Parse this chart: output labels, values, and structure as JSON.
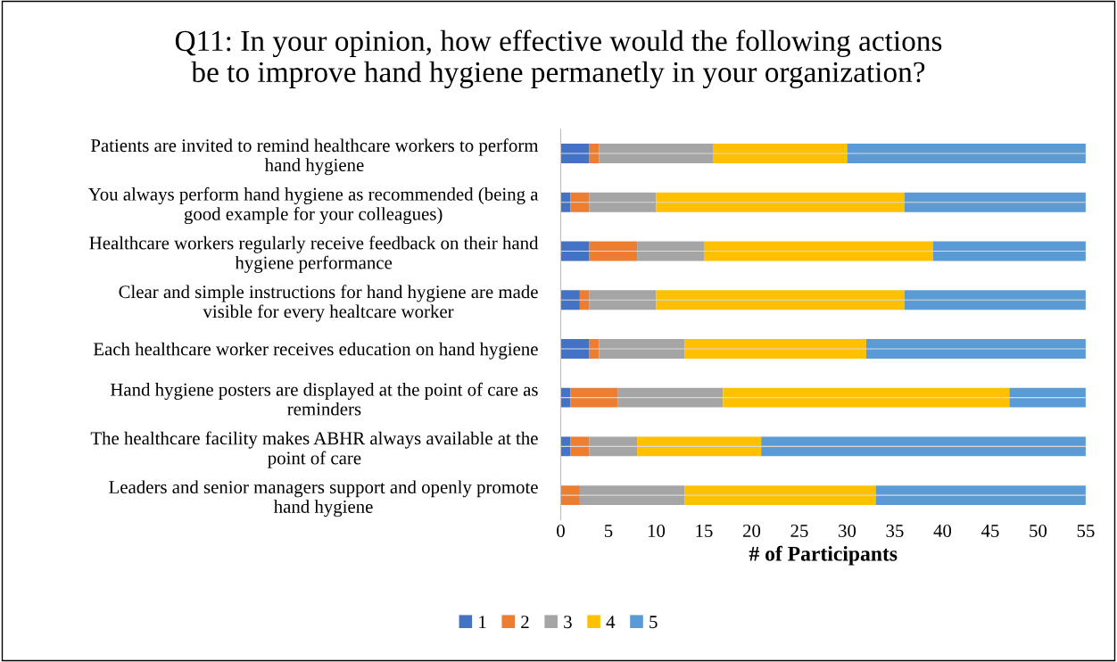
{
  "chart_data": {
    "type": "bar",
    "orientation": "horizontal",
    "stacked": true,
    "title": "Q11: In your opinion, how effective would the following actions\nbe to improve hand hygiene permanetly in your organization?",
    "xlabel": "# of Participants",
    "categories": [
      "Patients are invited to remind healthcare workers to perform\nhand hygiene",
      "You always perform hand hygiene as recommended (being a\ngood example for your colleagues)",
      "Healthcare workers regularly receive feedback on their hand\nhygiene performance",
      "Clear and simple instructions for hand hygiene are made\nvisible for every healtcare worker",
      "Each healthcare worker receives education on hand hygiene",
      "Hand hygiene posters are displayed at the point of care as\nreminders",
      "The healthcare facility makes ABHR always available at the\npoint of care",
      "Leaders and senior managers support and openly promote\nhand hygiene"
    ],
    "series": [
      {
        "name": "1",
        "color": "#4472c4",
        "values": [
          3,
          1,
          3,
          2,
          3,
          1,
          1,
          0
        ]
      },
      {
        "name": "2",
        "color": "#ed7d31",
        "values": [
          1,
          2,
          5,
          1,
          1,
          5,
          2,
          2
        ]
      },
      {
        "name": "3",
        "color": "#a5a5a5",
        "values": [
          12,
          7,
          7,
          7,
          9,
          11,
          5,
          11
        ]
      },
      {
        "name": "4",
        "color": "#ffc000",
        "values": [
          14,
          26,
          24,
          26,
          19,
          30,
          13,
          20
        ]
      },
      {
        "name": "5",
        "color": "#5b9bd5",
        "values": [
          25,
          19,
          16,
          19,
          23,
          8,
          34,
          22
        ]
      }
    ],
    "xlim": [
      0,
      55
    ],
    "xticks": [
      0,
      5,
      10,
      15,
      20,
      25,
      30,
      35,
      40,
      45,
      50,
      55
    ],
    "grid": false,
    "legend": "bottom"
  }
}
